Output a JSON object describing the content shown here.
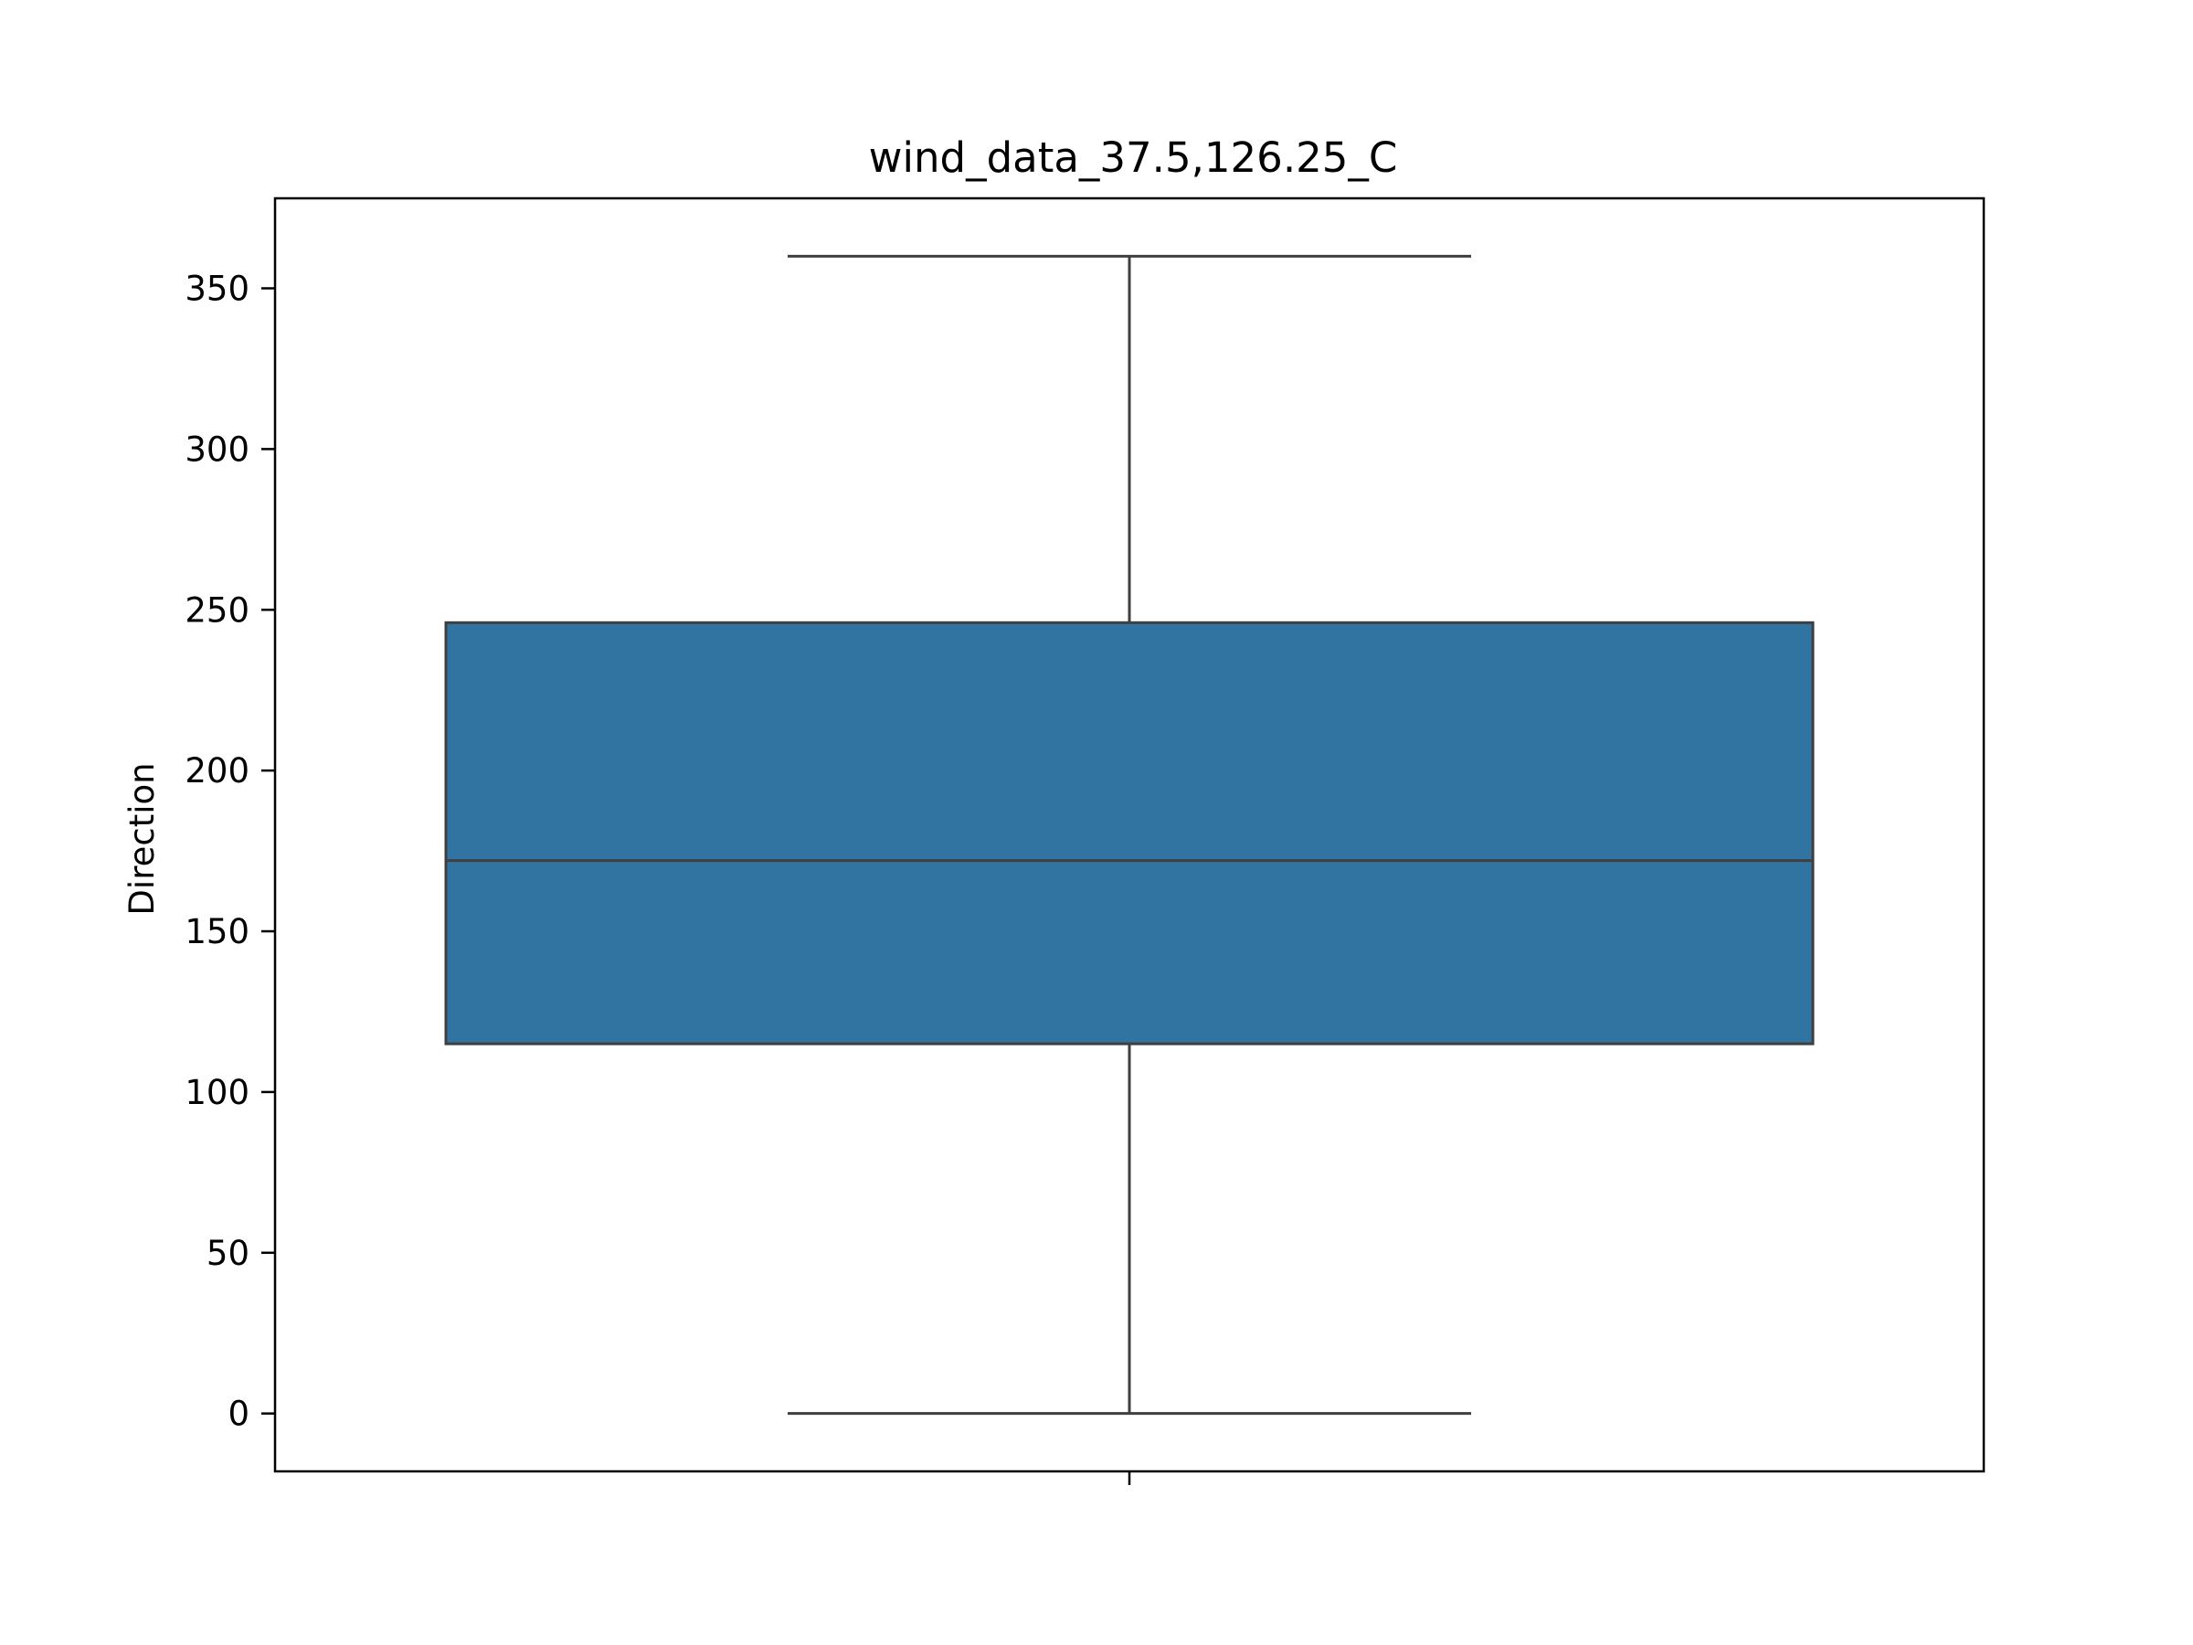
{
  "chart_data": {
    "type": "box",
    "title": "wind_data_37.5,126.25_C",
    "xlabel": "",
    "ylabel": "Direction",
    "ylim": [
      -18,
      378
    ],
    "yticks": [
      0,
      50,
      100,
      150,
      200,
      250,
      300,
      350
    ],
    "grid": false,
    "box": {
      "whisker_low": 0,
      "q1": 115,
      "median": 172,
      "q3": 246,
      "whisker_high": 360
    },
    "colors": {
      "box_fill": "#3274a1",
      "box_edge": "#3f3f3f"
    }
  }
}
